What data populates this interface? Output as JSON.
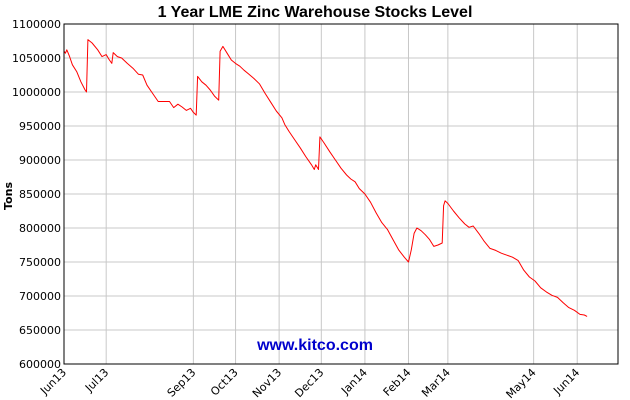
{
  "chart_data": {
    "type": "line",
    "title": "1 Year LME Zinc Warehouse Stocks Level",
    "xlabel": "",
    "ylabel": "Tons",
    "watermark": "www.kitco.com",
    "ylim": [
      600000,
      1100000
    ],
    "yticks": [
      600000,
      650000,
      700000,
      750000,
      800000,
      850000,
      900000,
      950000,
      1000000,
      1050000,
      1100000
    ],
    "xlim": [
      "2013-06-01",
      "2014-06-30"
    ],
    "xticks": [
      {
        "label": "Jun13",
        "date": "2013-06-01"
      },
      {
        "label": "Jul13",
        "date": "2013-07-01"
      },
      {
        "label": "Sep13",
        "date": "2013-09-01"
      },
      {
        "label": "Oct13",
        "date": "2013-10-01"
      },
      {
        "label": "Nov13",
        "date": "2013-11-01"
      },
      {
        "label": "Dec13",
        "date": "2013-12-01"
      },
      {
        "label": "Jan14",
        "date": "2014-01-01"
      },
      {
        "label": "Feb14",
        "date": "2014-02-01"
      },
      {
        "label": "Mar14",
        "date": "2014-03-01"
      },
      {
        "label": "May14",
        "date": "2014-05-01"
      },
      {
        "label": "Jun14",
        "date": "2014-06-01"
      }
    ],
    "grid": true,
    "series": [
      {
        "color": "#ff0000",
        "points": [
          [
            "2013-06-01",
            1060000
          ],
          [
            "2013-06-02",
            1057000
          ],
          [
            "2013-06-03",
            1062000
          ],
          [
            "2013-06-05",
            1052000
          ],
          [
            "2013-06-07",
            1040000
          ],
          [
            "2013-06-10",
            1030000
          ],
          [
            "2013-06-13",
            1015000
          ],
          [
            "2013-06-16",
            1003000
          ],
          [
            "2013-06-17",
            1000000
          ],
          [
            "2013-06-18",
            1077000
          ],
          [
            "2013-06-21",
            1072000
          ],
          [
            "2013-06-25",
            1062000
          ],
          [
            "2013-06-28",
            1052000
          ],
          [
            "2013-07-01",
            1055000
          ],
          [
            "2013-07-03",
            1048000
          ],
          [
            "2013-07-05",
            1042000
          ],
          [
            "2013-07-06",
            1058000
          ],
          [
            "2013-07-09",
            1052000
          ],
          [
            "2013-07-12",
            1050000
          ],
          [
            "2013-07-16",
            1042000
          ],
          [
            "2013-07-20",
            1035000
          ],
          [
            "2013-07-24",
            1026000
          ],
          [
            "2013-07-27",
            1025000
          ],
          [
            "2013-07-30",
            1010000
          ],
          [
            "2013-08-03",
            998000
          ],
          [
            "2013-08-07",
            986000
          ],
          [
            "2013-08-11",
            986000
          ],
          [
            "2013-08-15",
            986000
          ],
          [
            "2013-08-18",
            977000
          ],
          [
            "2013-08-21",
            982000
          ],
          [
            "2013-08-24",
            978000
          ],
          [
            "2013-08-27",
            973000
          ],
          [
            "2013-08-30",
            976000
          ],
          [
            "2013-09-01",
            970000
          ],
          [
            "2013-09-03",
            966000
          ],
          [
            "2013-09-04",
            1023000
          ],
          [
            "2013-09-07",
            1015000
          ],
          [
            "2013-09-10",
            1010000
          ],
          [
            "2013-09-13",
            1003000
          ],
          [
            "2013-09-16",
            994000
          ],
          [
            "2013-09-19",
            988000
          ],
          [
            "2013-09-20",
            1060000
          ],
          [
            "2013-09-22",
            1067000
          ],
          [
            "2013-09-25",
            1057000
          ],
          [
            "2013-09-28",
            1047000
          ],
          [
            "2013-10-01",
            1042000
          ],
          [
            "2013-10-04",
            1038000
          ],
          [
            "2013-10-07",
            1032000
          ],
          [
            "2013-10-10",
            1027000
          ],
          [
            "2013-10-14",
            1020000
          ],
          [
            "2013-10-18",
            1012000
          ],
          [
            "2013-10-22",
            998000
          ],
          [
            "2013-10-26",
            985000
          ],
          [
            "2013-10-30",
            972000
          ],
          [
            "2013-11-03",
            962000
          ],
          [
            "2013-11-05",
            952000
          ],
          [
            "2013-11-08",
            942000
          ],
          [
            "2013-11-12",
            930000
          ],
          [
            "2013-11-16",
            918000
          ],
          [
            "2013-11-20",
            905000
          ],
          [
            "2013-11-24",
            893000
          ],
          [
            "2013-11-26",
            886000
          ],
          [
            "2013-11-27",
            893000
          ],
          [
            "2013-11-29",
            886000
          ],
          [
            "2013-11-30",
            934000
          ],
          [
            "2013-12-03",
            925000
          ],
          [
            "2013-12-07",
            912000
          ],
          [
            "2013-12-11",
            900000
          ],
          [
            "2013-12-15",
            888000
          ],
          [
            "2013-12-19",
            878000
          ],
          [
            "2013-12-22",
            872000
          ],
          [
            "2013-12-25",
            868000
          ],
          [
            "2013-12-28",
            858000
          ],
          [
            "2014-01-01",
            850000
          ],
          [
            "2014-01-05",
            838000
          ],
          [
            "2014-01-09",
            822000
          ],
          [
            "2014-01-13",
            808000
          ],
          [
            "2014-01-17",
            798000
          ],
          [
            "2014-01-21",
            783000
          ],
          [
            "2014-01-25",
            768000
          ],
          [
            "2014-01-29",
            757000
          ],
          [
            "2014-02-01",
            750000
          ],
          [
            "2014-02-03",
            768000
          ],
          [
            "2014-02-05",
            792000
          ],
          [
            "2014-02-07",
            800000
          ],
          [
            "2014-02-10",
            796000
          ],
          [
            "2014-02-13",
            790000
          ],
          [
            "2014-02-16",
            783000
          ],
          [
            "2014-02-19",
            773000
          ],
          [
            "2014-02-22",
            775000
          ],
          [
            "2014-02-25",
            778000
          ],
          [
            "2014-02-26",
            833000
          ],
          [
            "2014-02-27",
            840000
          ],
          [
            "2014-03-01",
            836000
          ],
          [
            "2014-03-05",
            825000
          ],
          [
            "2014-03-09",
            815000
          ],
          [
            "2014-03-13",
            806000
          ],
          [
            "2014-03-16",
            801000
          ],
          [
            "2014-03-19",
            803000
          ],
          [
            "2014-03-23",
            792000
          ],
          [
            "2014-03-27",
            780000
          ],
          [
            "2014-03-31",
            770000
          ],
          [
            "2014-04-04",
            767000
          ],
          [
            "2014-04-08",
            763000
          ],
          [
            "2014-04-12",
            760000
          ],
          [
            "2014-04-16",
            757000
          ],
          [
            "2014-04-20",
            752000
          ],
          [
            "2014-04-24",
            738000
          ],
          [
            "2014-04-28",
            728000
          ],
          [
            "2014-05-02",
            722000
          ],
          [
            "2014-05-06",
            712000
          ],
          [
            "2014-05-10",
            706000
          ],
          [
            "2014-05-14",
            701000
          ],
          [
            "2014-05-18",
            698000
          ],
          [
            "2014-05-22",
            690000
          ],
          [
            "2014-05-26",
            683000
          ],
          [
            "2014-05-30",
            679000
          ],
          [
            "2014-06-03",
            673000
          ],
          [
            "2014-06-06",
            672000
          ],
          [
            "2014-06-08",
            670000
          ]
        ]
      }
    ]
  },
  "colors": {
    "line": "#ff0000",
    "watermark": "#0000cc",
    "grid": "#c8c8c8",
    "axis": "#000000"
  }
}
